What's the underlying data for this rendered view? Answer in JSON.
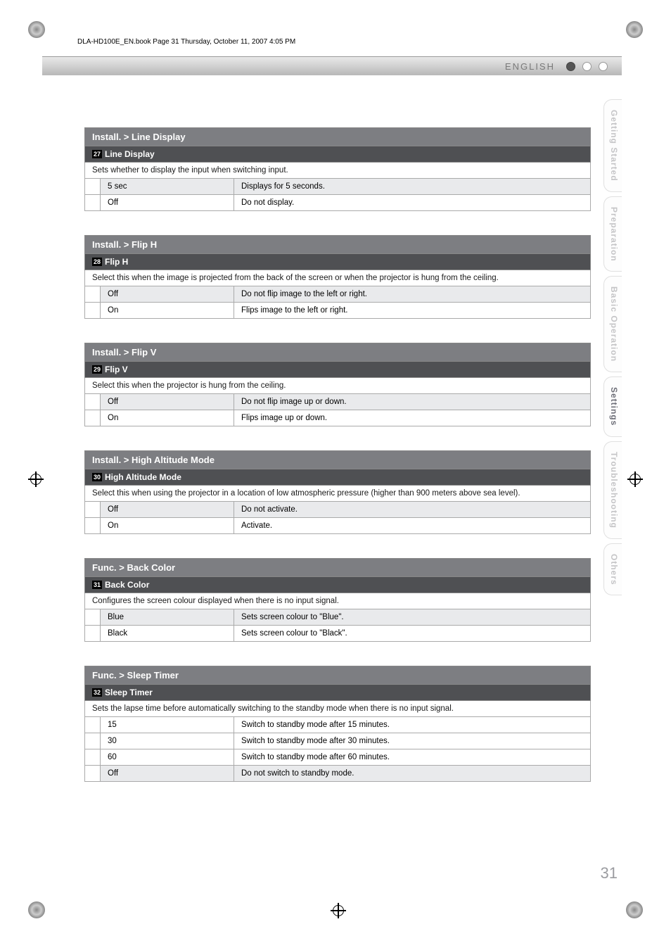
{
  "meta": {
    "book_header": "DLA-HD100E_EN.book  Page 31  Thursday, October 11, 2007  4:05 PM"
  },
  "header": {
    "language": "ENGLISH"
  },
  "side_tabs": {
    "items": [
      {
        "label": "Getting Started",
        "active": false
      },
      {
        "label": "Preparation",
        "active": false
      },
      {
        "label": "Basic Operation",
        "active": false
      },
      {
        "label": "Settings",
        "active": true
      },
      {
        "label": "Troubleshooting",
        "active": false
      },
      {
        "label": "Others",
        "active": false
      }
    ]
  },
  "page_number": "31",
  "sections": [
    {
      "breadcrumb": "Install. > Line Display",
      "num": "27",
      "title": "Line Display",
      "desc": "Sets whether to display the input when switching input.",
      "options": [
        {
          "label": "5 sec",
          "value": "Displays for 5 seconds.",
          "highlight": true
        },
        {
          "label": "Off",
          "value": "Do not display.",
          "highlight": false
        }
      ]
    },
    {
      "breadcrumb": "Install. > Flip H",
      "num": "28",
      "title": "Flip H",
      "desc": "Select this when the image is projected from the back of the screen or when the projector is hung from the ceiling.",
      "options": [
        {
          "label": "Off",
          "value": "Do not flip image to the left or right.",
          "highlight": true
        },
        {
          "label": "On",
          "value": "Flips image to the left or right.",
          "highlight": false
        }
      ]
    },
    {
      "breadcrumb": "Install. > Flip V",
      "num": "29",
      "title": "Flip V",
      "desc": "Select this when the projector is hung from the ceiling.",
      "options": [
        {
          "label": "Off",
          "value": "Do not flip image up or down.",
          "highlight": true
        },
        {
          "label": "On",
          "value": "Flips image up or down.",
          "highlight": false
        }
      ]
    },
    {
      "breadcrumb": "Install. > High Altitude Mode",
      "num": "30",
      "title": "High Altitude Mode",
      "desc": "Select this when using the projector in a location of low atmospheric pressure (higher than 900 meters above sea level).",
      "options": [
        {
          "label": "Off",
          "value": "Do not activate.",
          "highlight": true
        },
        {
          "label": "On",
          "value": "Activate.",
          "highlight": false
        }
      ]
    },
    {
      "breadcrumb": "Func. > Back Color",
      "num": "31",
      "title": "Back Color",
      "desc": "Configures the screen colour displayed when there is no input signal.",
      "options": [
        {
          "label": "Blue",
          "value": "Sets screen colour to \"Blue\".",
          "highlight": true
        },
        {
          "label": "Black",
          "value": "Sets screen colour to \"Black\".",
          "highlight": false
        }
      ]
    },
    {
      "breadcrumb": "Func. > Sleep Timer",
      "num": "32",
      "title": "Sleep Timer",
      "desc": "Sets the lapse time before automatically switching to the standby mode when there is no input signal.",
      "options": [
        {
          "label": "15",
          "value": "Switch to standby mode after 15 minutes.",
          "highlight": false
        },
        {
          "label": "30",
          "value": "Switch to standby mode after 30 minutes.",
          "highlight": false
        },
        {
          "label": "60",
          "value": "Switch to standby mode after 60 minutes.",
          "highlight": false
        },
        {
          "label": "Off",
          "value": "Do not switch to standby mode.",
          "highlight": true
        }
      ]
    }
  ]
}
